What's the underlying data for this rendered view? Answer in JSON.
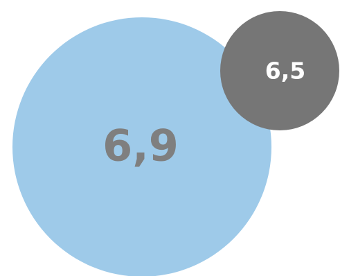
{
  "chart_data": {
    "type": "bubble",
    "title": "",
    "series": [
      {
        "label": "6,9",
        "value": 6.9,
        "color": "#9ECAE9",
        "label_color": "#7F7F7F"
      },
      {
        "label": "6,5",
        "value": 6.5,
        "color": "#767676",
        "label_color": "#FFFFFF"
      }
    ]
  }
}
